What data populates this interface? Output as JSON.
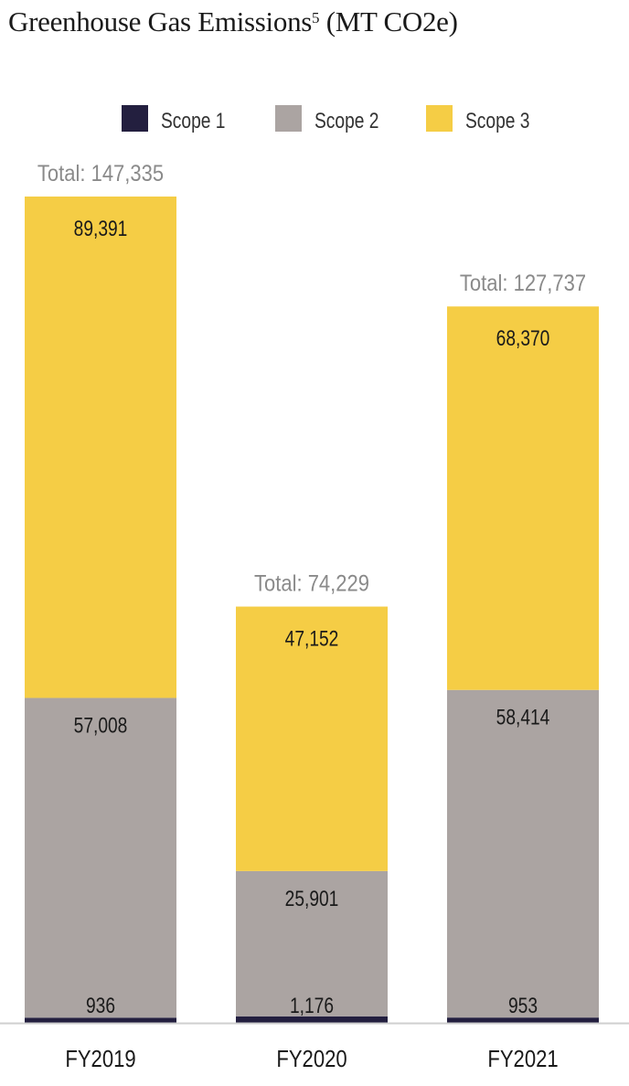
{
  "chart_data": {
    "type": "bar",
    "stacked": true,
    "title": "Greenhouse Gas Emissions",
    "title_superscript": "5",
    "title_units": "(MT CO2e)",
    "categories": [
      "FY2019",
      "FY2020",
      "FY2021"
    ],
    "series": [
      {
        "name": "Scope 1",
        "color": "#231f3f",
        "values": [
          936,
          1176,
          953
        ],
        "labels": [
          "936",
          "1,176",
          "953"
        ]
      },
      {
        "name": "Scope 2",
        "color": "#aba4a2",
        "values": [
          57008,
          25901,
          58414
        ],
        "labels": [
          "57,008",
          "25,901",
          "58,414"
        ]
      },
      {
        "name": "Scope 3",
        "color": "#f5cd45",
        "values": [
          89391,
          47152,
          68370
        ],
        "labels": [
          "89,391",
          "47,152",
          "68,370"
        ]
      }
    ],
    "totals": [
      "Total: 147,335",
      "Total: 74,229",
      "Total: 127,737"
    ],
    "total_values": [
      147335,
      74229,
      127737
    ],
    "legend_placement": "top-center",
    "grid": false,
    "xlabel": "",
    "ylabel": "",
    "ylim": [
      0,
      147335
    ]
  }
}
